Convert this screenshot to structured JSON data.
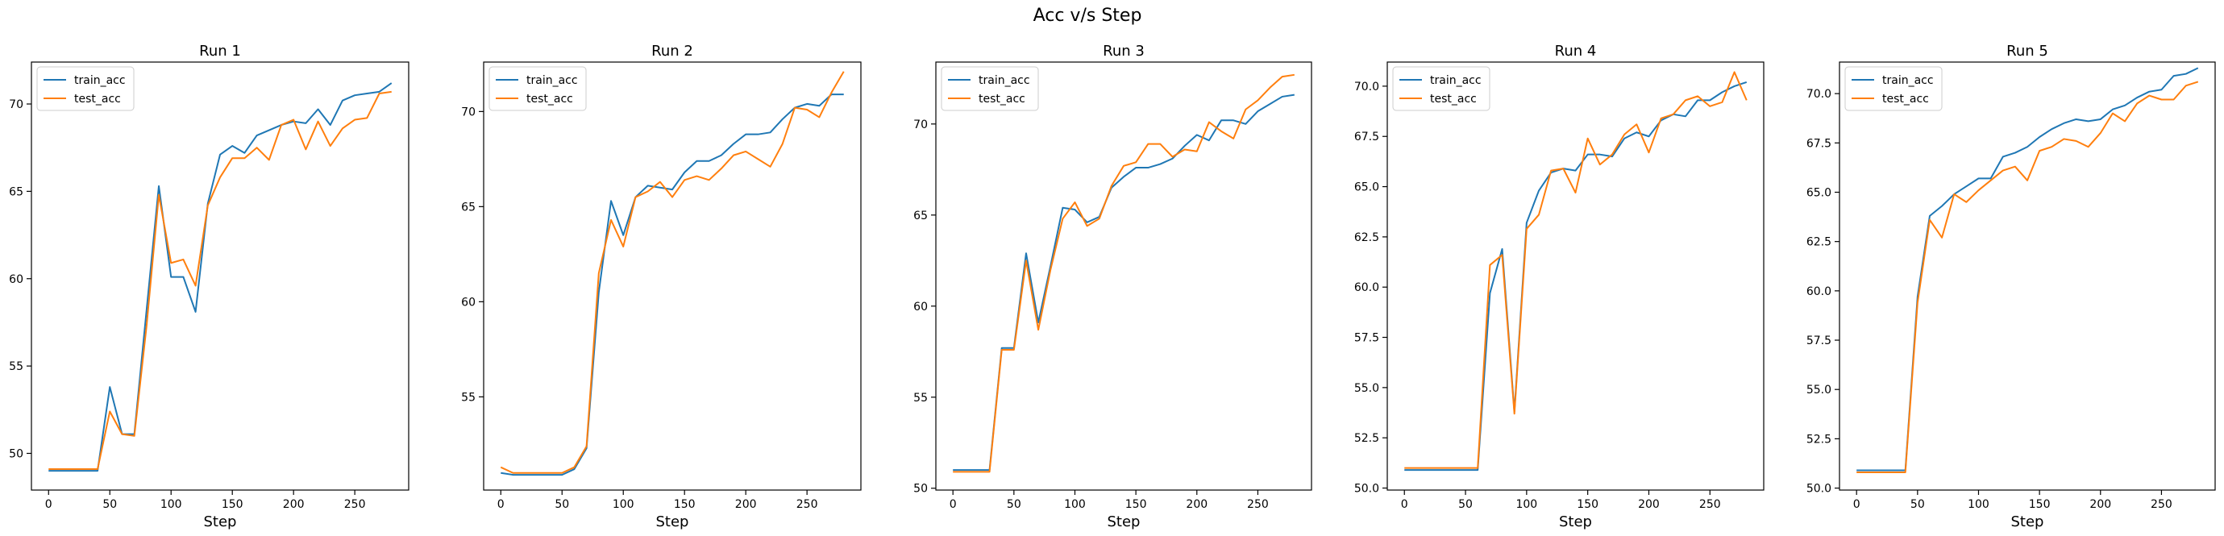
{
  "figure": {
    "suptitle": "Acc v/s Step"
  },
  "colors": {
    "train_acc": "#1f77b4",
    "test_acc": "#ff7f0e"
  },
  "chart_data": [
    {
      "type": "line",
      "title": "Run 1",
      "xlabel": "Step",
      "ylabel": "",
      "x": [
        0,
        10,
        20,
        30,
        40,
        50,
        60,
        70,
        80,
        90,
        100,
        110,
        120,
        130,
        140,
        150,
        160,
        170,
        180,
        190,
        200,
        210,
        220,
        230,
        240,
        250,
        260,
        270,
        280
      ],
      "xlim": [
        -14,
        294
      ],
      "ylim": [
        47.9,
        72.4
      ],
      "xticks": [
        0,
        50,
        100,
        150,
        200,
        250
      ],
      "yticks": [
        50,
        55,
        60,
        65,
        70
      ],
      "legend": "top-left",
      "series": [
        {
          "name": "train_acc",
          "values": [
            49.0,
            49.0,
            49.0,
            49.0,
            49.0,
            53.8,
            51.1,
            51.1,
            58.2,
            65.3,
            60.1,
            60.1,
            58.1,
            64.3,
            67.1,
            67.6,
            67.2,
            68.2,
            68.5,
            68.8,
            69.0,
            68.9,
            69.7,
            68.8,
            70.2,
            70.5,
            70.6,
            70.7,
            71.2
          ]
        },
        {
          "name": "test_acc",
          "values": [
            49.1,
            49.1,
            49.1,
            49.1,
            49.1,
            52.4,
            51.1,
            51.0,
            57.3,
            64.8,
            60.9,
            61.1,
            59.6,
            64.2,
            65.8,
            66.9,
            66.9,
            67.5,
            66.8,
            68.8,
            69.1,
            67.4,
            69.0,
            67.6,
            68.6,
            69.1,
            69.2,
            70.6,
            70.7
          ]
        }
      ]
    },
    {
      "type": "line",
      "title": "Run 2",
      "xlabel": "Step",
      "ylabel": "",
      "x": [
        0,
        10,
        20,
        30,
        40,
        50,
        60,
        70,
        80,
        90,
        100,
        110,
        120,
        130,
        140,
        150,
        160,
        170,
        180,
        190,
        200,
        210,
        220,
        230,
        240,
        250,
        260,
        270,
        280
      ],
      "xlim": [
        -14,
        294
      ],
      "ylim": [
        50.1,
        72.6
      ],
      "xticks": [
        0,
        50,
        100,
        150,
        200,
        250
      ],
      "yticks": [
        55,
        60,
        65,
        70
      ],
      "legend": "top-left",
      "series": [
        {
          "name": "train_acc",
          "values": [
            51.0,
            50.9,
            50.9,
            50.9,
            50.9,
            50.9,
            51.2,
            52.3,
            60.5,
            65.3,
            63.5,
            65.5,
            66.1,
            66.0,
            65.9,
            66.8,
            67.4,
            67.4,
            67.7,
            68.3,
            68.8,
            68.8,
            68.9,
            69.6,
            70.2,
            70.4,
            70.3,
            70.9,
            70.9
          ]
        },
        {
          "name": "test_acc",
          "values": [
            51.3,
            51.0,
            51.0,
            51.0,
            51.0,
            51.0,
            51.3,
            52.4,
            61.5,
            64.3,
            62.9,
            65.5,
            65.8,
            66.3,
            65.5,
            66.4,
            66.6,
            66.4,
            67.0,
            67.7,
            67.9,
            67.5,
            67.1,
            68.3,
            70.2,
            70.1,
            69.7,
            71.0,
            72.1
          ]
        }
      ]
    },
    {
      "type": "line",
      "title": "Run 3",
      "xlabel": "Step",
      "ylabel": "",
      "x": [
        0,
        10,
        20,
        30,
        40,
        50,
        60,
        70,
        80,
        90,
        100,
        110,
        120,
        130,
        140,
        150,
        160,
        170,
        180,
        190,
        200,
        210,
        220,
        230,
        240,
        250,
        260,
        270,
        280
      ],
      "xlim": [
        -14,
        294
      ],
      "ylim": [
        49.9,
        73.4
      ],
      "xticks": [
        0,
        50,
        100,
        150,
        200,
        250
      ],
      "yticks": [
        50,
        55,
        60,
        65,
        70
      ],
      "legend": "top-left",
      "series": [
        {
          "name": "train_acc",
          "values": [
            51.0,
            51.0,
            51.0,
            51.0,
            57.7,
            57.7,
            62.9,
            59.1,
            62.2,
            65.4,
            65.3,
            64.6,
            64.9,
            66.5,
            67.1,
            67.6,
            67.6,
            67.8,
            68.1,
            68.8,
            69.4,
            69.1,
            70.2,
            70.2,
            70.0,
            70.7,
            71.1,
            71.5,
            71.6
          ]
        },
        {
          "name": "test_acc",
          "values": [
            50.9,
            50.9,
            50.9,
            50.9,
            57.6,
            57.6,
            62.5,
            58.7,
            62.0,
            64.8,
            65.7,
            64.4,
            64.8,
            66.6,
            67.7,
            67.9,
            68.9,
            68.9,
            68.2,
            68.6,
            68.5,
            70.1,
            69.6,
            69.2,
            70.8,
            71.3,
            72.0,
            72.6,
            72.7
          ]
        }
      ]
    },
    {
      "type": "line",
      "title": "Run 4",
      "xlabel": "Step",
      "ylabel": "",
      "x": [
        0,
        10,
        20,
        30,
        40,
        50,
        60,
        70,
        80,
        90,
        100,
        110,
        120,
        130,
        140,
        150,
        160,
        170,
        180,
        190,
        200,
        210,
        220,
        230,
        240,
        250,
        260,
        270,
        280
      ],
      "xlim": [
        -14,
        294
      ],
      "ylim": [
        49.9,
        71.2
      ],
      "xticks": [
        0,
        50,
        100,
        150,
        200,
        250
      ],
      "yticks": [
        50.0,
        52.5,
        55.0,
        57.5,
        60.0,
        62.5,
        65.0,
        67.5,
        70.0
      ],
      "legend": "top-left",
      "series": [
        {
          "name": "train_acc",
          "values": [
            50.9,
            50.9,
            50.9,
            50.9,
            50.9,
            50.9,
            50.9,
            59.7,
            61.9,
            53.8,
            63.2,
            64.8,
            65.7,
            65.9,
            65.8,
            66.6,
            66.6,
            66.5,
            67.4,
            67.7,
            67.5,
            68.3,
            68.6,
            68.5,
            69.3,
            69.3,
            69.7,
            70.0,
            70.2
          ]
        },
        {
          "name": "test_acc",
          "values": [
            51.0,
            51.0,
            51.0,
            51.0,
            51.0,
            51.0,
            51.0,
            61.1,
            61.6,
            53.7,
            62.9,
            63.6,
            65.8,
            65.9,
            64.7,
            67.4,
            66.1,
            66.6,
            67.6,
            68.1,
            66.7,
            68.4,
            68.6,
            69.3,
            69.5,
            69.0,
            69.2,
            70.7,
            69.3
          ]
        }
      ]
    },
    {
      "type": "line",
      "title": "Run 5",
      "xlabel": "Step",
      "ylabel": "",
      "x": [
        0,
        10,
        20,
        30,
        40,
        50,
        60,
        70,
        80,
        90,
        100,
        110,
        120,
        130,
        140,
        150,
        160,
        170,
        180,
        190,
        200,
        210,
        220,
        230,
        240,
        250,
        260,
        270,
        280
      ],
      "xlim": [
        -14,
        294
      ],
      "ylim": [
        49.9,
        71.6
      ],
      "xticks": [
        0,
        50,
        100,
        150,
        200,
        250
      ],
      "yticks": [
        50.0,
        52.5,
        55.0,
        57.5,
        60.0,
        62.5,
        65.0,
        67.5,
        70.0
      ],
      "legend": "top-left",
      "series": [
        {
          "name": "train_acc",
          "values": [
            50.9,
            50.9,
            50.9,
            50.9,
            50.9,
            59.7,
            63.8,
            64.3,
            64.9,
            65.3,
            65.7,
            65.7,
            66.8,
            67.0,
            67.3,
            67.8,
            68.2,
            68.5,
            68.7,
            68.6,
            68.7,
            69.2,
            69.4,
            69.8,
            70.1,
            70.2,
            70.9,
            71.0,
            71.3
          ]
        },
        {
          "name": "test_acc",
          "values": [
            50.8,
            50.8,
            50.8,
            50.8,
            50.8,
            59.4,
            63.6,
            62.7,
            64.9,
            64.5,
            65.1,
            65.6,
            66.1,
            66.3,
            65.6,
            67.1,
            67.3,
            67.7,
            67.6,
            67.3,
            68.0,
            69.0,
            68.6,
            69.5,
            69.9,
            69.7,
            69.7,
            70.4,
            70.6
          ]
        }
      ]
    }
  ]
}
